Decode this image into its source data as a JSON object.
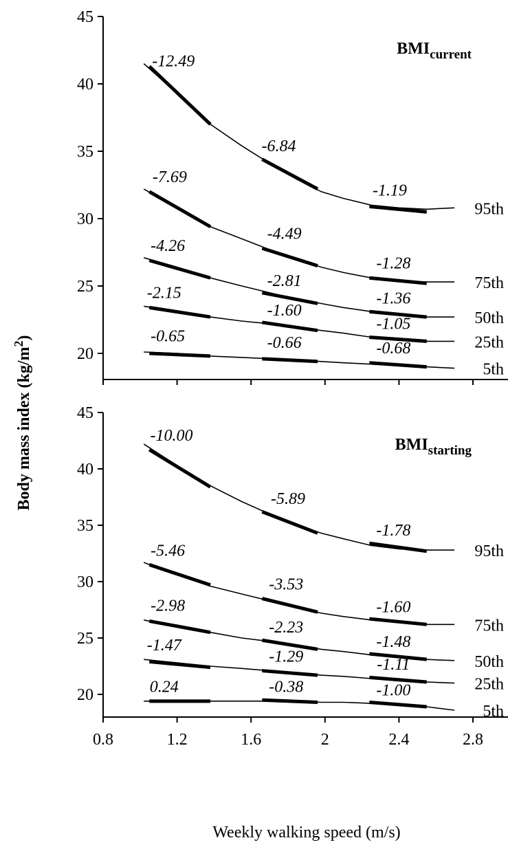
{
  "chart_data": {
    "type": "line",
    "xlabel": "Weekly walking speed (m/s)",
    "ylabel_main": "Body mass index (kg/m",
    "ylabel_sup": "2",
    "ylabel_close": ")",
    "xlim": [
      0.8,
      2.8
    ],
    "ylim": [
      18.2,
      45
    ],
    "x_ticks": [
      0.8,
      1.2,
      1.6,
      2,
      2.4,
      2.8
    ],
    "x_tick_labels": [
      "0.8",
      "1.2",
      "1.6",
      "2",
      "2.4",
      "2.8"
    ],
    "y_ticks": [
      20,
      25,
      30,
      35,
      40,
      45
    ],
    "y_tick_labels": [
      "20",
      "25",
      "30",
      "35",
      "40",
      "45"
    ],
    "panels": [
      {
        "title_main": "BMI",
        "title_sub": "current",
        "series": [
          {
            "name": "95th",
            "x": [
              1.02,
              1.2,
              1.38,
              1.55,
              1.7,
              1.85,
              1.98,
              2.1,
              2.25,
              2.4,
              2.55,
              2.7
            ],
            "y": [
              41.5,
              39.3,
              37.0,
              35.4,
              34.1,
              32.9,
              32.0,
              31.5,
              31.0,
              30.8,
              30.7,
              30.8
            ],
            "segments": [
              {
                "x": [
                  1.05,
                  1.38
                ],
                "y": [
                  41.3,
                  37.0
                ],
                "label": "-12.49",
                "label_x": 1.18,
                "label_y": 41.3
              },
              {
                "x": [
                  1.66,
                  1.96
                ],
                "y": [
                  34.4,
                  32.2
                ],
                "label": "-6.84",
                "label_x": 1.75,
                "label_y": 35.0
              },
              {
                "x": [
                  2.24,
                  2.55
                ],
                "y": [
                  30.9,
                  30.5
                ],
                "label": "-1.19",
                "label_x": 2.35,
                "label_y": 31.7
              }
            ]
          },
          {
            "name": "75th",
            "x": [
              1.02,
              1.2,
              1.38,
              1.55,
              1.7,
              1.85,
              1.98,
              2.1,
              2.25,
              2.4,
              2.55,
              2.7
            ],
            "y": [
              32.2,
              30.8,
              29.4,
              28.5,
              27.7,
              27.0,
              26.4,
              26.0,
              25.6,
              25.4,
              25.3,
              25.3
            ],
            "segments": [
              {
                "x": [
                  1.05,
                  1.38
                ],
                "y": [
                  32.0,
                  29.4
                ],
                "label": "-7.69",
                "label_x": 1.16,
                "label_y": 32.7
              },
              {
                "x": [
                  1.66,
                  1.96
                ],
                "y": [
                  27.8,
                  26.5
                ],
                "label": "-4.49",
                "label_x": 1.78,
                "label_y": 28.5
              },
              {
                "x": [
                  2.24,
                  2.55
                ],
                "y": [
                  25.6,
                  25.2
                ],
                "label": "-1.28",
                "label_x": 2.37,
                "label_y": 26.3
              }
            ]
          },
          {
            "name": "50th",
            "x": [
              1.02,
              1.2,
              1.38,
              1.55,
              1.7,
              1.85,
              1.98,
              2.1,
              2.25,
              2.4,
              2.55,
              2.7
            ],
            "y": [
              27.1,
              26.4,
              25.6,
              25.0,
              24.5,
              24.0,
              23.7,
              23.4,
              23.1,
              22.9,
              22.7,
              22.7
            ],
            "segments": [
              {
                "x": [
                  1.05,
                  1.38
                ],
                "y": [
                  26.9,
                  25.6
                ],
                "label": "-4.26",
                "label_x": 1.15,
                "label_y": 27.6
              },
              {
                "x": [
                  1.66,
                  1.96
                ],
                "y": [
                  24.5,
                  23.7
                ],
                "label": "-2.81",
                "label_x": 1.78,
                "label_y": 25.0
              },
              {
                "x": [
                  2.24,
                  2.55
                ],
                "y": [
                  23.1,
                  22.7
                ],
                "label": "-1.36",
                "label_x": 2.37,
                "label_y": 23.7
              }
            ]
          },
          {
            "name": "25th",
            "x": [
              1.02,
              1.2,
              1.38,
              1.55,
              1.7,
              1.85,
              1.98,
              2.1,
              2.25,
              2.4,
              2.55,
              2.7
            ],
            "y": [
              23.5,
              23.1,
              22.7,
              22.4,
              22.2,
              21.9,
              21.7,
              21.5,
              21.2,
              21.0,
              20.9,
              20.9
            ],
            "segments": [
              {
                "x": [
                  1.05,
                  1.38
                ],
                "y": [
                  23.4,
                  22.7
                ],
                "label": "-2.15",
                "label_x": 1.13,
                "label_y": 24.1
              },
              {
                "x": [
                  1.66,
                  1.96
                ],
                "y": [
                  22.3,
                  21.7
                ],
                "label": "-1.60",
                "label_x": 1.78,
                "label_y": 22.8
              },
              {
                "x": [
                  2.24,
                  2.55
                ],
                "y": [
                  21.2,
                  20.9
                ],
                "label": "-1.05",
                "label_x": 2.37,
                "label_y": 21.8
              }
            ]
          },
          {
            "name": "5th",
            "x": [
              1.02,
              1.2,
              1.38,
              1.55,
              1.7,
              1.85,
              1.98,
              2.1,
              2.25,
              2.4,
              2.55,
              2.7
            ],
            "y": [
              20.1,
              20.0,
              19.8,
              19.7,
              19.6,
              19.5,
              19.4,
              19.3,
              19.2,
              19.1,
              19.0,
              18.9
            ],
            "segments": [
              {
                "x": [
                  1.05,
                  1.38
                ],
                "y": [
                  20.0,
                  19.8
                ],
                "label": "-0.65",
                "label_x": 1.15,
                "label_y": 20.9
              },
              {
                "x": [
                  1.66,
                  1.96
                ],
                "y": [
                  19.6,
                  19.4
                ],
                "label": "-0.66",
                "label_x": 1.78,
                "label_y": 20.4
              },
              {
                "x": [
                  2.24,
                  2.55
                ],
                "y": [
                  19.3,
                  19.0
                ],
                "label": "-0.68",
                "label_x": 2.37,
                "label_y": 20.0
              }
            ]
          }
        ]
      },
      {
        "title_main": "BMI",
        "title_sub": "starting",
        "series": [
          {
            "name": "95th",
            "x": [
              1.02,
              1.2,
              1.38,
              1.55,
              1.7,
              1.85,
              1.98,
              2.1,
              2.25,
              2.4,
              2.55,
              2.7
            ],
            "y": [
              42.2,
              40.3,
              38.5,
              37.1,
              36.0,
              35.0,
              34.3,
              33.8,
              33.2,
              32.9,
              32.8,
              32.8
            ],
            "segments": [
              {
                "x": [
                  1.05,
                  1.38
                ],
                "y": [
                  41.7,
                  38.4
                ],
                "label": "-10.00",
                "label_x": 1.17,
                "label_y": 42.5
              },
              {
                "x": [
                  1.66,
                  1.96
                ],
                "y": [
                  36.2,
                  34.3
                ],
                "label": "-5.89",
                "label_x": 1.8,
                "label_y": 36.9
              },
              {
                "x": [
                  2.24,
                  2.55
                ],
                "y": [
                  33.4,
                  32.7
                ],
                "label": "-1.78",
                "label_x": 2.37,
                "label_y": 34.1
              }
            ]
          },
          {
            "name": "75th",
            "x": [
              1.02,
              1.2,
              1.38,
              1.55,
              1.7,
              1.85,
              1.98,
              2.1,
              2.25,
              2.4,
              2.55,
              2.7
            ],
            "y": [
              31.7,
              30.6,
              29.6,
              28.9,
              28.3,
              27.7,
              27.2,
              26.9,
              26.6,
              26.4,
              26.2,
              26.2
            ],
            "segments": [
              {
                "x": [
                  1.05,
                  1.38
                ],
                "y": [
                  31.5,
                  29.7
                ],
                "label": "-5.46",
                "label_x": 1.15,
                "label_y": 32.3
              },
              {
                "x": [
                  1.66,
                  1.96
                ],
                "y": [
                  28.5,
                  27.3
                ],
                "label": "-3.53",
                "label_x": 1.79,
                "label_y": 29.3
              },
              {
                "x": [
                  2.24,
                  2.55
                ],
                "y": [
                  26.7,
                  26.2
                ],
                "label": "-1.60",
                "label_x": 2.37,
                "label_y": 27.3
              }
            ]
          },
          {
            "name": "50th",
            "x": [
              1.02,
              1.2,
              1.38,
              1.55,
              1.7,
              1.85,
              1.98,
              2.1,
              2.25,
              2.4,
              2.55,
              2.7
            ],
            "y": [
              26.6,
              26.0,
              25.5,
              25.0,
              24.7,
              24.3,
              24.0,
              23.8,
              23.5,
              23.3,
              23.1,
              23.0
            ],
            "segments": [
              {
                "x": [
                  1.05,
                  1.38
                ],
                "y": [
                  26.5,
                  25.5
                ],
                "label": "-2.98",
                "label_x": 1.15,
                "label_y": 27.4
              },
              {
                "x": [
                  1.66,
                  1.96
                ],
                "y": [
                  24.8,
                  24.0
                ],
                "label": "-2.23",
                "label_x": 1.79,
                "label_y": 25.5
              },
              {
                "x": [
                  2.24,
                  2.55
                ],
                "y": [
                  23.6,
                  23.1
                ],
                "label": "-1.48",
                "label_x": 2.37,
                "label_y": 24.2
              }
            ]
          },
          {
            "name": "25th",
            "x": [
              1.02,
              1.2,
              1.38,
              1.55,
              1.7,
              1.85,
              1.98,
              2.1,
              2.25,
              2.4,
              2.55,
              2.7
            ],
            "y": [
              23.1,
              22.8,
              22.5,
              22.3,
              22.1,
              21.9,
              21.7,
              21.6,
              21.4,
              21.2,
              21.1,
              21.0
            ],
            "segments": [
              {
                "x": [
                  1.05,
                  1.38
                ],
                "y": [
                  22.9,
                  22.4
                ],
                "label": "-1.47",
                "label_x": 1.13,
                "label_y": 23.9
              },
              {
                "x": [
                  1.66,
                  1.96
                ],
                "y": [
                  22.1,
                  21.7
                ],
                "label": "-1.29",
                "label_x": 1.79,
                "label_y": 22.9
              },
              {
                "x": [
                  2.24,
                  2.55
                ],
                "y": [
                  21.5,
                  21.1
                ],
                "label": "-1.11",
                "label_x": 2.37,
                "label_y": 22.2
              }
            ]
          },
          {
            "name": "5th",
            "x": [
              1.02,
              1.2,
              1.38,
              1.55,
              1.7,
              1.85,
              1.98,
              2.1,
              2.25,
              2.4,
              2.55,
              2.7
            ],
            "y": [
              19.4,
              19.4,
              19.4,
              19.4,
              19.4,
              19.4,
              19.3,
              19.3,
              19.2,
              19.0,
              18.9,
              18.6
            ],
            "segments": [
              {
                "x": [
                  1.05,
                  1.38
                ],
                "y": [
                  19.4,
                  19.4
                ],
                "label": "0.24",
                "label_x": 1.13,
                "label_y": 20.2
              },
              {
                "x": [
                  1.66,
                  1.96
                ],
                "y": [
                  19.5,
                  19.3
                ],
                "label": "-0.38",
                "label_x": 1.79,
                "label_y": 20.2
              },
              {
                "x": [
                  2.24,
                  2.55
                ],
                "y": [
                  19.3,
                  18.9
                ],
                "label": "-1.00",
                "label_x": 2.37,
                "label_y": 19.9
              }
            ]
          }
        ]
      }
    ]
  }
}
